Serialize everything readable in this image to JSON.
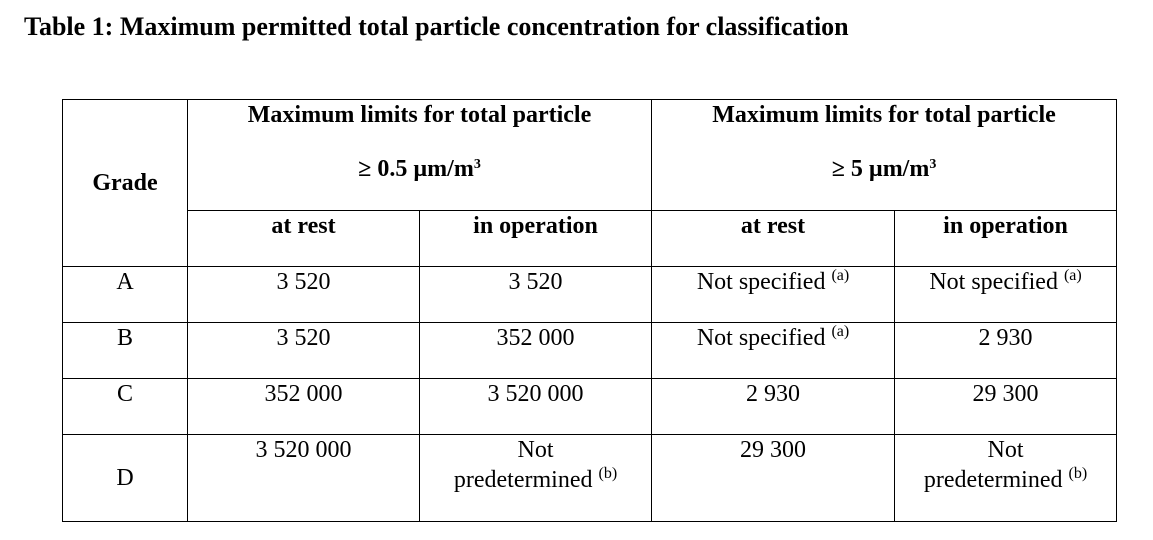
{
  "title": "Table 1: Maximum permitted total particle concentration for classification",
  "table": {
    "grade_header": "Grade",
    "groups": [
      {
        "line1": "Maximum limits for total particle",
        "line2_prefix": "≥ 0.5 µm/m",
        "line2_sup": "3"
      },
      {
        "line1": "Maximum limits for total particle",
        "line2_prefix": "≥ 5 µm/m",
        "line2_sup": "3"
      }
    ],
    "subheaders": [
      "at rest",
      "in operation",
      "at rest",
      "in operation"
    ],
    "rows": [
      {
        "grade": "A",
        "cells": [
          {
            "text": "3 520",
            "note": ""
          },
          {
            "text": "3 520",
            "note": ""
          },
          {
            "text": "Not specified",
            "note": "(a)"
          },
          {
            "text": "Not specified",
            "note": "(a)"
          }
        ]
      },
      {
        "grade": "B",
        "cells": [
          {
            "text": "3 520",
            "note": ""
          },
          {
            "text": "352 000",
            "note": ""
          },
          {
            "text": "Not specified",
            "note": "(a)"
          },
          {
            "text": "2 930",
            "note": ""
          }
        ]
      },
      {
        "grade": "C",
        "cells": [
          {
            "text": "352 000",
            "note": ""
          },
          {
            "text": "3 520 000",
            "note": ""
          },
          {
            "text": "2 930",
            "note": ""
          },
          {
            "text": "29 300",
            "note": ""
          }
        ]
      },
      {
        "grade": "D",
        "cells": [
          {
            "text": "3 520 000",
            "note": ""
          },
          {
            "line1": "Not",
            "line2": "predetermined",
            "note": "(b)"
          },
          {
            "text": "29 300",
            "note": ""
          },
          {
            "line1": "Not",
            "line2": "predetermined",
            "note": "(b)"
          }
        ]
      }
    ]
  }
}
